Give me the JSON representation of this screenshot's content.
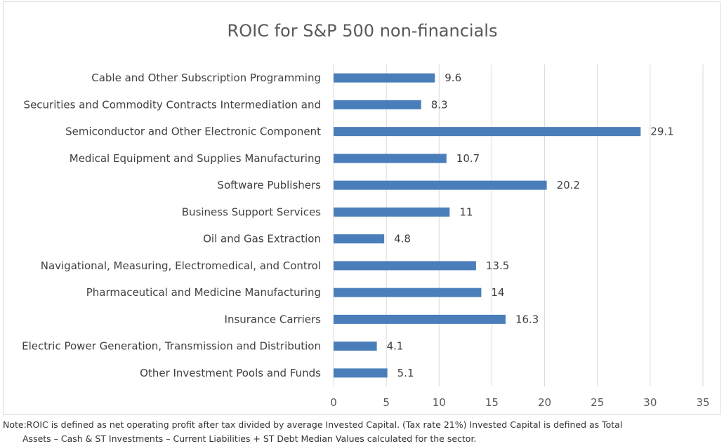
{
  "chart_data": {
    "type": "bar",
    "orientation": "horizontal",
    "title": "ROIC for  S&P 500 non-financials",
    "categories": [
      "Cable and Other Subscription Programming",
      "Securities and Commodity Contracts Intermediation and",
      "Semiconductor and Other Electronic Component",
      "Medical Equipment and Supplies Manufacturing",
      "Software Publishers",
      "Business Support Services",
      "Oil and Gas Extraction",
      "Navigational, Measuring, Electromedical, and Control",
      "Pharmaceutical and Medicine Manufacturing",
      "Insurance Carriers",
      "Electric Power Generation, Transmission and Distribution",
      "Other Investment Pools and Funds"
    ],
    "values": [
      9.6,
      8.3,
      29.1,
      10.7,
      20.2,
      11,
      4.8,
      13.5,
      14,
      16.3,
      4.1,
      5.1
    ],
    "value_labels": [
      "9.6",
      "8.3",
      "29.1",
      "10.7",
      "20.2",
      "11",
      "4.8",
      "13.5",
      "14",
      "16.3",
      "4.1",
      "5.1"
    ],
    "xticks": [
      "0",
      "5",
      "10",
      "15",
      "20",
      "25",
      "30",
      "35"
    ],
    "xlim": [
      0,
      35
    ],
    "grid": "vertical",
    "legend": "none",
    "bar_color": "#4a7ebb",
    "grid_color": "#d9d9d9"
  },
  "note": {
    "line1": "Note:ROIC is defined as net operating profit after tax divided by average Invested Capital. (Tax rate 21%) Invested Capital is defined as Total",
    "line2": "Assets – Cash & ST Investments – Current Liabilities + ST Debt Median Values calculated for the sector."
  }
}
